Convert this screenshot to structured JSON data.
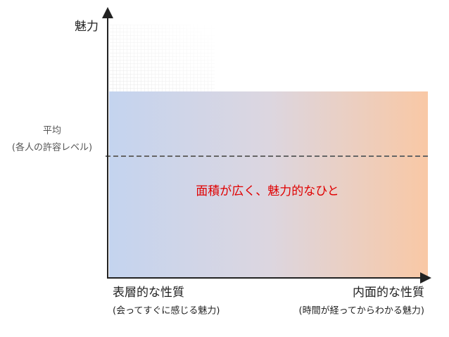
{
  "axes": {
    "y_label": "魅力"
  },
  "average": {
    "title": "平均",
    "note": "(各人の許容レベル)"
  },
  "area_label": "面積が広く、魅力的なひと",
  "left": {
    "title": "表層的な性質",
    "note": "(会ってすぐに感じる魅力)"
  },
  "right": {
    "title": "内面的な性質",
    "note": "(時間が経ってからわかる魅力)"
  }
}
